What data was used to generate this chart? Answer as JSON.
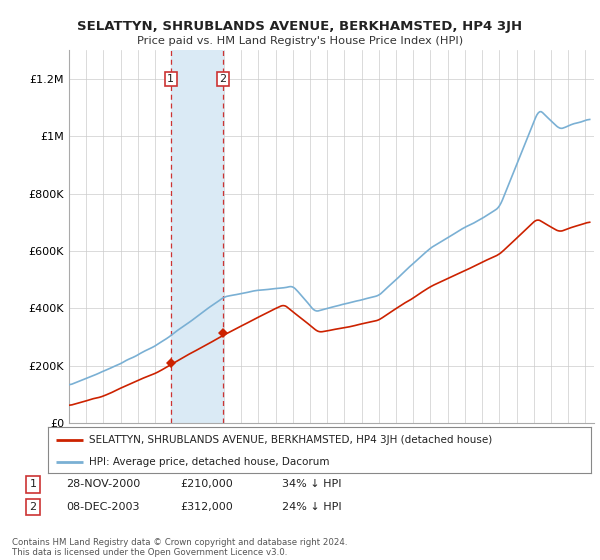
{
  "title": "SELATTYN, SHRUBLANDS AVENUE, BERKHAMSTED, HP4 3JH",
  "subtitle": "Price paid vs. HM Land Registry's House Price Index (HPI)",
  "ylabel_ticks": [
    "£0",
    "£200K",
    "£400K",
    "£600K",
    "£800K",
    "£1M",
    "£1.2M"
  ],
  "ytick_values": [
    0,
    200000,
    400000,
    600000,
    800000,
    1000000,
    1200000
  ],
  "ylim": [
    0,
    1300000
  ],
  "xlim_start": 1995.0,
  "xlim_end": 2025.5,
  "hpi_color": "#7ab0d4",
  "price_color": "#cc2200",
  "sale1_year": 2000.91,
  "sale1_price": 210000,
  "sale2_year": 2003.93,
  "sale2_price": 312000,
  "sale1_label": "1",
  "sale2_label": "2",
  "shade_color": "#daeaf5",
  "vline_color": "#cc3333",
  "legend_label_price": "SELATTYN, SHRUBLANDS AVENUE, BERKHAMSTED, HP4 3JH (detached house)",
  "legend_label_hpi": "HPI: Average price, detached house, Dacorum",
  "background_color": "#ffffff",
  "grid_color": "#cccccc"
}
